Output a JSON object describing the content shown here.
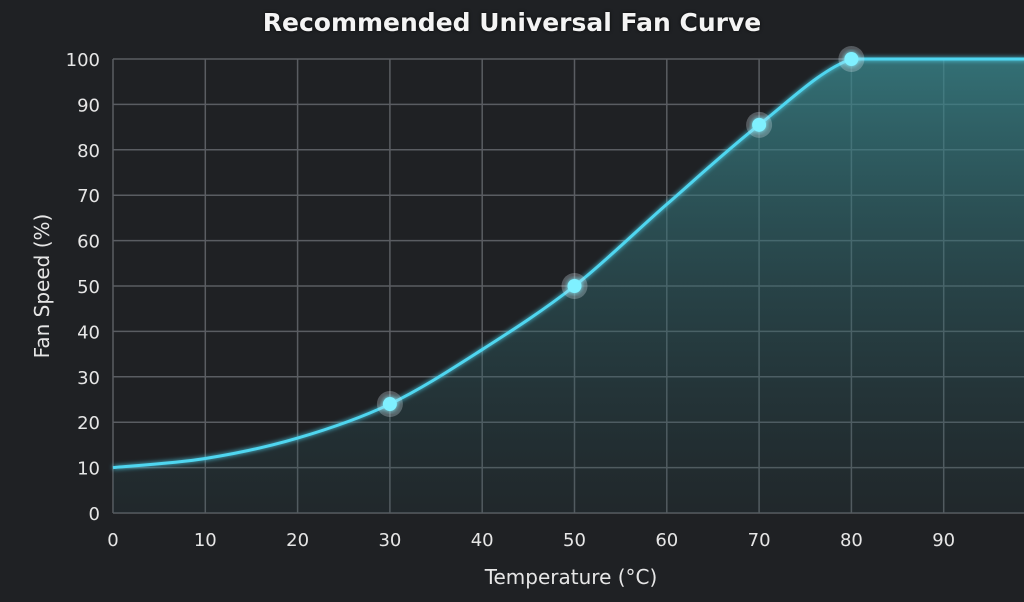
{
  "chart_data": {
    "type": "line",
    "title": "Recommended Universal Fan Curve",
    "xlabel": "Temperature (°C)",
    "ylabel": "Fan Speed (%)",
    "xlim": [
      0,
      98
    ],
    "ylim": [
      0,
      100
    ],
    "x_ticks": [
      0,
      10,
      20,
      30,
      40,
      50,
      60,
      70,
      80,
      90
    ],
    "y_ticks": [
      0,
      10,
      20,
      30,
      40,
      50,
      60,
      70,
      80,
      90,
      100
    ],
    "grid": true,
    "legend": null,
    "series": [
      {
        "name": "Fan Curve",
        "color": "#4fd6f0",
        "fill": "area-under-curve (teal gradient)",
        "x": [
          0,
          10,
          20,
          30,
          40,
          50,
          60,
          70,
          80,
          90,
          98
        ],
        "y": [
          10,
          12,
          16.5,
          24,
          36,
          50,
          68,
          85.5,
          100,
          100,
          100
        ]
      }
    ],
    "control_points": [
      {
        "x": 30,
        "y": 24
      },
      {
        "x": 50,
        "y": 50
      },
      {
        "x": 70,
        "y": 85.5
      },
      {
        "x": 80,
        "y": 100
      }
    ]
  },
  "colors": {
    "background": "#1f2124",
    "grid": "#5a5d62",
    "curve": "#4fd6f0",
    "point": "#7ff0ff",
    "fill": "#2f6b70"
  }
}
